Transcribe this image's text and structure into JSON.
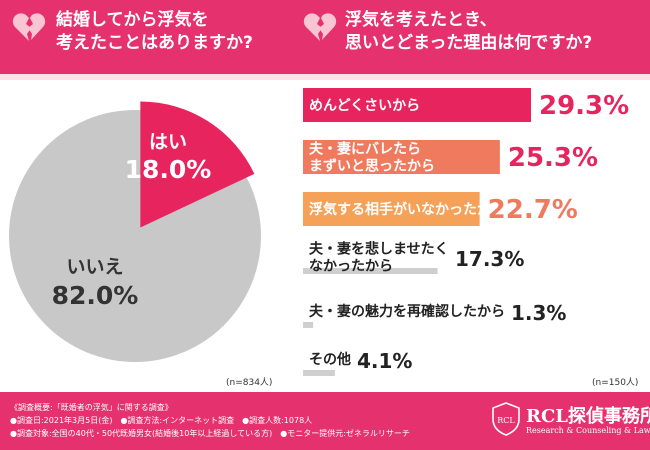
{
  "colors": {
    "brand": "#e6316f",
    "bar_primary": "#e8245f",
    "bar_secondary": "#f07a5e",
    "bar_tertiary": "#f6a158",
    "bar_gray": "#cfcfcf",
    "pie_yes": "#e8245f",
    "pie_no": "#c8c8c8"
  },
  "header": {
    "q1_line1": "結婚してから浮気を",
    "q1_line2": "考えたことはありますか?",
    "q2_line1": "浮気を考えたとき、",
    "q2_line2": "思いとどまった理由は何ですか?"
  },
  "pie": {
    "n_label": "(n=834人)"
  },
  "bars": {
    "n_label": "(n=150人)"
  },
  "chart_data": [
    {
      "type": "pie",
      "title": "結婚してから浮気を考えたことはありますか?",
      "slices": [
        {
          "label": "はい",
          "value": 18.0,
          "display": "18.0%"
        },
        {
          "label": "いいえ",
          "value": 82.0,
          "display": "82.0%"
        }
      ]
    },
    {
      "type": "bar",
      "title": "浮気を考えたとき、思いとどまった理由は何ですか?",
      "orientation": "horizontal",
      "xlim": [
        0,
        29.3
      ],
      "categories": [
        [
          "めんどくさいから"
        ],
        [
          "夫・妻にバレたら",
          "まずいと思ったから"
        ],
        [
          "浮気する相手がいなかったから"
        ],
        [
          "夫・妻を悲しませたく",
          "なかったから"
        ],
        [
          "夫・妻の魅力を再確認したから"
        ],
        [
          "その他"
        ]
      ],
      "values": [
        29.3,
        25.3,
        22.7,
        17.3,
        1.3,
        4.1
      ],
      "value_labels": [
        "29.3%",
        "25.3%",
        "22.7%",
        "17.3%",
        "1.3%",
        "4.1%"
      ]
    }
  ],
  "footer": {
    "line1": "《調査概要:「既婚者の浮気」に関する調査》",
    "line2": "●調査日:2021年3月5日(金)　●調査方法:インターネット調査　●調査人数:1078人",
    "line3": "●調査対象:全国の40代・50代既婚男女(結婚後10年以上経過している方)　●モニター提供元:ゼネラルリサーチ",
    "logo_title": "RCL探偵事務所",
    "logo_sub": "Research & Counseling & Law",
    "logo_mark_text": "RCL"
  }
}
